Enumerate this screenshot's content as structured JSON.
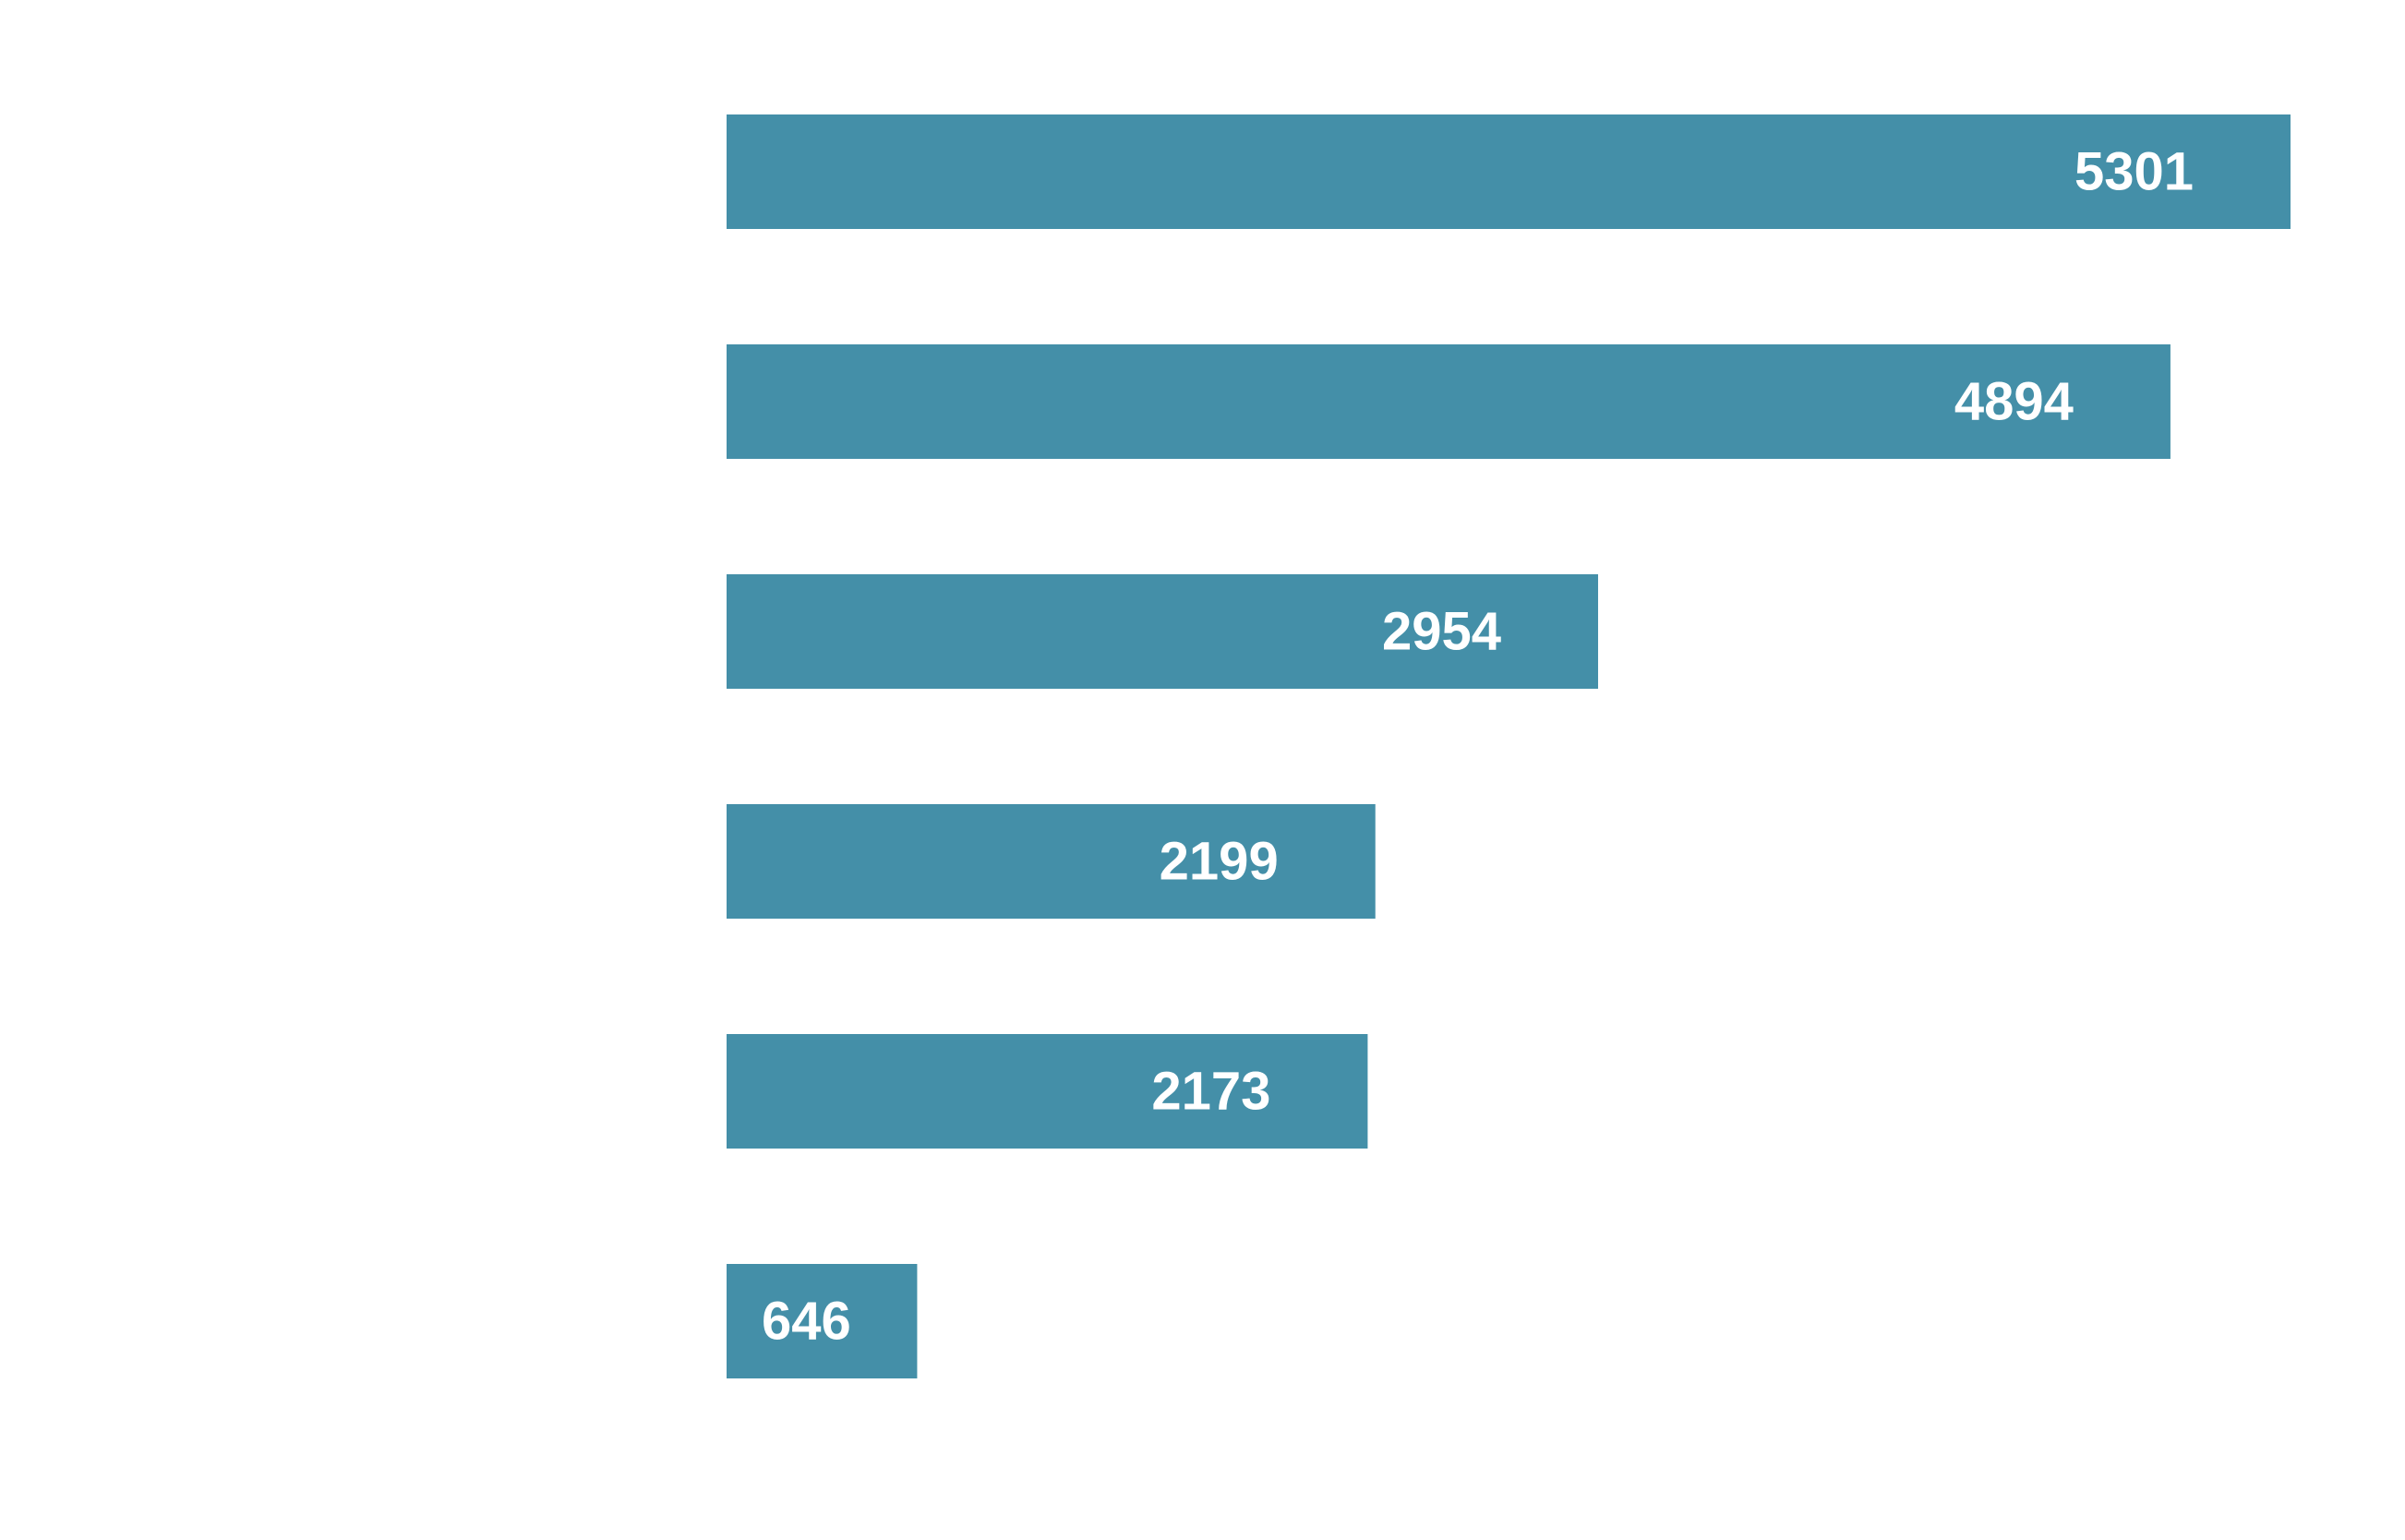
{
  "chart_data": {
    "type": "bar",
    "orientation": "horizontal",
    "categories": [
      "",
      "",
      "",
      "",
      "",
      ""
    ],
    "values": [
      5301,
      4894,
      2954,
      2199,
      2173,
      646
    ],
    "data_labels": [
      "5301",
      "4894",
      "2954",
      "2199",
      "2173",
      "646"
    ],
    "title": "",
    "xlabel": "",
    "ylabel": "",
    "xlim": [
      0,
      5301
    ],
    "grid": false,
    "legend": "none",
    "colors": {
      "bar": "#448fa8",
      "label": "#ffffff",
      "background": "#ffffff"
    }
  }
}
